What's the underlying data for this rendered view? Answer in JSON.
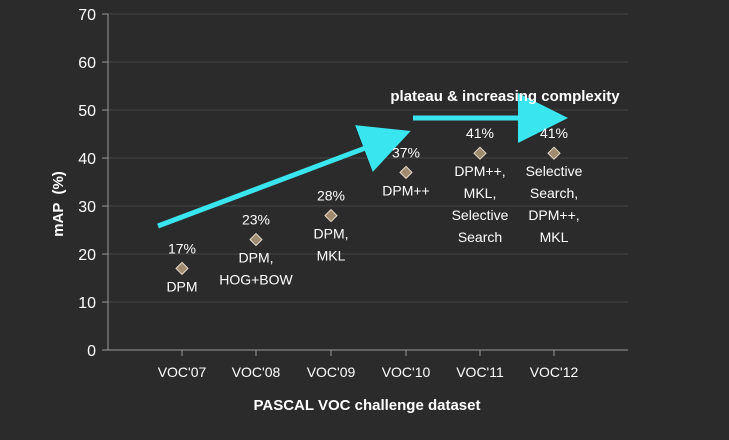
{
  "colors": {
    "background": "#2b2b2b",
    "axis": "#9a9a9a",
    "gridline": "#444444",
    "marker_fill": "#a08a6e",
    "marker_stroke": "#e8dccb",
    "arrow": "#39e6f0",
    "text": "#ffffff"
  },
  "chart_data": {
    "type": "scatter",
    "title": "",
    "xlabel": "PASCAL VOC challenge dataset",
    "ylabel": "mAP  (%)",
    "ylim": [
      0,
      70
    ],
    "yticks": [
      0,
      10,
      20,
      30,
      40,
      50,
      60,
      70
    ],
    "grid": true,
    "categories": [
      "VOC'07",
      "VOC'08",
      "VOC'09",
      "VOC'10",
      "VOC'11",
      "VOC'12"
    ],
    "values": [
      17,
      23,
      28,
      37,
      41,
      41
    ],
    "value_labels": [
      "17%",
      "23%",
      "28%",
      "37%",
      "41%",
      "41%"
    ],
    "method_labels": [
      [
        "DPM"
      ],
      [
        "DPM,",
        "HOG+BOW"
      ],
      [
        "DPM,",
        "MKL"
      ],
      [
        "DPM++"
      ],
      [
        "DPM++,",
        "MKL,",
        "Selective",
        "Search"
      ],
      [
        "Selective",
        "Search,",
        "DPM++,",
        "MKL"
      ]
    ],
    "annotations": [
      {
        "text": "plateau & increasing complexity"
      }
    ]
  }
}
